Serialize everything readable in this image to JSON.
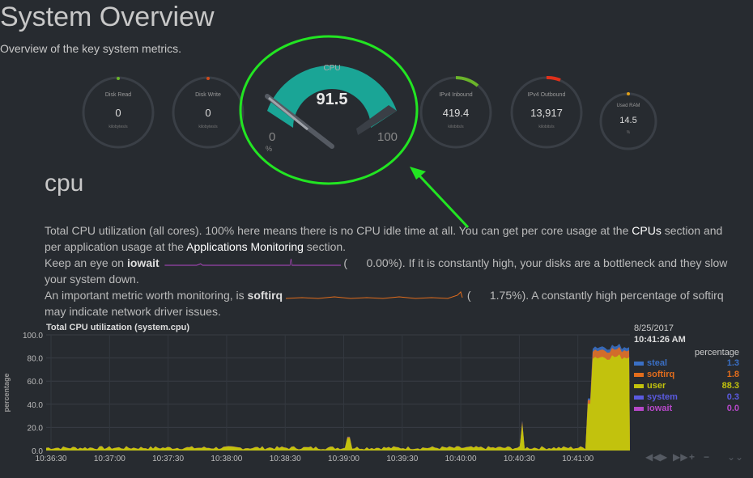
{
  "page": {
    "title": "System Overview",
    "subtitle": "Overview of the key system metrics."
  },
  "gauges": [
    {
      "label": "Disk Read",
      "value": "0",
      "unit": "kilobytes/s"
    },
    {
      "label": "Disk Write",
      "value": "0",
      "unit": "kilobytes/s"
    },
    {
      "label": "CPU",
      "value": "91.5",
      "min": "0",
      "max": "100",
      "unit": "%",
      "fraction": 0.915
    },
    {
      "label": "IPv4 Inbound",
      "value": "419.4",
      "unit": "kilobits/s"
    },
    {
      "label": "IPv4 Outbound",
      "value": "13,917",
      "unit": "kilobits/s"
    },
    {
      "label": "Used RAM",
      "value": "14.5",
      "unit": "%"
    }
  ],
  "section": {
    "title": "cpu",
    "p1_a": "Total CPU utilization (all cores). 100% here means there is no CPU idle time at all. You can get per core usage at the ",
    "p1_link1": "CPUs",
    "p1_b": " section and per application usage at the ",
    "p1_link2": "Applications Monitoring",
    "p1_c": " section.",
    "p2_a": "Keep an eye on ",
    "p2_metric": "iowait",
    "p2_val": "0.00%",
    "p2_b": "). If it is constantly high, your disks are a bottleneck and they slow your system down.",
    "p3_a": "An important metric worth monitoring, is ",
    "p3_metric": "softirq",
    "p3_val": "1.75%",
    "p3_b": "). A constantly high percentage of softirq may indicate network driver issues."
  },
  "chart_data": {
    "type": "area",
    "title": "Total CPU utilization (system.cpu)",
    "ylabel": "percentage",
    "ylim": [
      0,
      100
    ],
    "yticks": [
      "100.0",
      "80.0",
      "60.0",
      "40.0",
      "20.0",
      "0.0"
    ],
    "x": [
      "10:36:30",
      "10:37:00",
      "10:37:30",
      "10:38:00",
      "10:38:30",
      "10:39:00",
      "10:39:30",
      "10:40:00",
      "10:40:30",
      "10:41:00"
    ],
    "series": [
      {
        "name": "steal",
        "color": "#3a6fc4",
        "legend_value": "1.3"
      },
      {
        "name": "softirq",
        "color": "#e36d1c",
        "legend_value": "1.8"
      },
      {
        "name": "user",
        "color": "#c2c20d",
        "legend_value": "88.3"
      },
      {
        "name": "system",
        "color": "#5a5ae0",
        "legend_value": "0.3"
      },
      {
        "name": "iowait",
        "color": "#b648c8",
        "legend_value": "0.0"
      }
    ],
    "legend_date": "8/25/2017",
    "legend_time": "10:41:26 AM",
    "legend_units": "percentage",
    "idle_level": 2.5,
    "busy_level": 90,
    "busy_from": "10:41:00"
  },
  "controls": [
    "pan-left-icon",
    "play-icon",
    "pan-right-icon",
    "zoom-in-icon",
    "zoom-out-icon",
    "resize-icon"
  ],
  "colors": {
    "annotation": "#22e522",
    "cpu_gauge": "#1aa596"
  }
}
